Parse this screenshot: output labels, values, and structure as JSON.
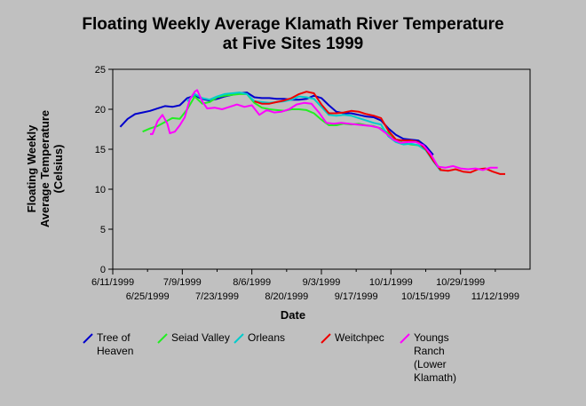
{
  "chart_data": {
    "type": "line",
    "title": [
      "Floating Weekly Average Klamath River Temperature",
      "at Five Sites 1999"
    ],
    "xlabel": "Date",
    "ylabel": [
      "Floating Weekly",
      "Average Temperature",
      "(Celsius)"
    ],
    "ylim": [
      0,
      25
    ],
    "yticks": [
      "0",
      "5",
      "10",
      "15",
      "20",
      "25"
    ],
    "xlim": [
      0,
      168
    ],
    "xticks_top": [
      {
        "x": 0,
        "label": "6/11/1999"
      },
      {
        "x": 28,
        "label": "7/9/1999"
      },
      {
        "x": 56,
        "label": "8/6/1999"
      },
      {
        "x": 84,
        "label": "9/3/1999"
      },
      {
        "x": 112,
        "label": "10/1/1999"
      },
      {
        "x": 140,
        "label": "10/29/1999"
      }
    ],
    "xticks_bottom": [
      {
        "x": 14,
        "label": "6/25/1999"
      },
      {
        "x": 42,
        "label": "7/23/1999"
      },
      {
        "x": 70,
        "label": "8/20/1999"
      },
      {
        "x": 98,
        "label": "9/17/1999"
      },
      {
        "x": 126,
        "label": "10/15/1999"
      },
      {
        "x": 154,
        "label": "11/12/1999"
      }
    ],
    "legend_placement": "bottom",
    "series": [
      {
        "name": "Tree of Heaven",
        "color": "#0000cc",
        "points": [
          [
            3,
            17.8
          ],
          [
            6,
            18.8
          ],
          [
            9,
            19.4
          ],
          [
            12,
            19.6
          ],
          [
            15,
            19.8
          ],
          [
            18,
            20.1
          ],
          [
            21,
            20.4
          ],
          [
            24,
            20.3
          ],
          [
            27,
            20.5
          ],
          [
            30,
            21.4
          ],
          [
            33,
            21.7
          ],
          [
            36,
            21.3
          ],
          [
            39,
            21.1
          ],
          [
            42,
            21.3
          ],
          [
            45,
            21.6
          ],
          [
            48,
            21.8
          ],
          [
            51,
            22.0
          ],
          [
            54,
            22.1
          ],
          [
            57,
            21.5
          ],
          [
            60,
            21.4
          ],
          [
            63,
            21.4
          ],
          [
            66,
            21.3
          ],
          [
            69,
            21.3
          ],
          [
            72,
            21.2
          ],
          [
            75,
            21.2
          ],
          [
            78,
            21.3
          ],
          [
            81,
            21.7
          ],
          [
            84,
            21.4
          ],
          [
            87,
            20.5
          ],
          [
            90,
            19.7
          ],
          [
            93,
            19.5
          ],
          [
            96,
            19.5
          ],
          [
            99,
            19.3
          ],
          [
            102,
            19.1
          ],
          [
            105,
            19.0
          ],
          [
            108,
            18.6
          ],
          [
            111,
            17.6
          ],
          [
            114,
            16.8
          ],
          [
            117,
            16.3
          ],
          [
            120,
            16.2
          ],
          [
            123,
            16.1
          ],
          [
            126,
            15.4
          ],
          [
            129,
            14.3
          ]
        ]
      },
      {
        "name": "Seiad Valley",
        "color": "#22ee22",
        "points": [
          [
            12,
            17.2
          ],
          [
            15,
            17.6
          ],
          [
            18,
            17.9
          ],
          [
            21,
            18.4
          ],
          [
            24,
            18.9
          ],
          [
            27,
            18.8
          ],
          [
            30,
            20.0
          ],
          [
            33,
            21.6
          ],
          [
            36,
            20.7
          ],
          [
            39,
            20.9
          ],
          [
            42,
            21.5
          ],
          [
            45,
            21.7
          ],
          [
            48,
            21.8
          ],
          [
            51,
            21.9
          ],
          [
            54,
            21.9
          ],
          [
            57,
            20.8
          ],
          [
            60,
            20.2
          ],
          [
            63,
            20.0
          ],
          [
            66,
            19.9
          ],
          [
            69,
            19.8
          ],
          [
            72,
            20.0
          ],
          [
            75,
            20.0
          ],
          [
            78,
            19.9
          ],
          [
            81,
            19.5
          ],
          [
            84,
            18.7
          ],
          [
            87,
            18.0
          ],
          [
            90,
            18.0
          ],
          [
            93,
            18.2
          ],
          [
            96,
            18.1
          ],
          [
            99,
            18.2
          ],
          [
            102,
            18.0
          ],
          [
            105,
            17.9
          ],
          [
            108,
            17.6
          ],
          [
            111,
            17.0
          ],
          [
            114,
            16.2
          ],
          [
            117,
            15.8
          ],
          [
            120,
            15.6
          ],
          [
            123,
            15.5
          ],
          [
            126,
            14.9
          ],
          [
            129,
            13.6
          ],
          [
            132,
            12.5
          ]
        ]
      },
      {
        "name": "Orleans",
        "color": "#00cccc",
        "points": [
          [
            30,
            21.0
          ],
          [
            33,
            21.9
          ],
          [
            36,
            21.4
          ],
          [
            39,
            21.2
          ],
          [
            42,
            21.6
          ],
          [
            45,
            21.9
          ],
          [
            48,
            22.0
          ],
          [
            51,
            22.1
          ],
          [
            54,
            21.9
          ],
          [
            57,
            21.0
          ],
          [
            60,
            20.9
          ],
          [
            63,
            20.8
          ],
          [
            66,
            20.9
          ],
          [
            69,
            21.0
          ],
          [
            72,
            21.2
          ],
          [
            75,
            21.6
          ],
          [
            78,
            21.5
          ],
          [
            81,
            21.3
          ],
          [
            84,
            20.3
          ],
          [
            87,
            19.3
          ],
          [
            90,
            19.2
          ],
          [
            93,
            19.3
          ],
          [
            96,
            19.2
          ],
          [
            99,
            18.9
          ],
          [
            102,
            18.6
          ],
          [
            105,
            18.3
          ],
          [
            108,
            18.1
          ],
          [
            111,
            16.6
          ],
          [
            114,
            15.9
          ],
          [
            117,
            15.6
          ],
          [
            120,
            15.7
          ],
          [
            123,
            15.5
          ],
          [
            126,
            14.9
          ],
          [
            129,
            13.5
          ],
          [
            132,
            12.3
          ]
        ]
      },
      {
        "name": "Weitchpec",
        "color": "#ee0000",
        "points": [
          [
            57,
            21.0
          ],
          [
            60,
            20.7
          ],
          [
            63,
            20.7
          ],
          [
            66,
            20.9
          ],
          [
            69,
            21.1
          ],
          [
            72,
            21.4
          ],
          [
            75,
            21.9
          ],
          [
            78,
            22.2
          ],
          [
            81,
            22.0
          ],
          [
            84,
            20.6
          ],
          [
            87,
            19.5
          ],
          [
            90,
            19.5
          ],
          [
            93,
            19.6
          ],
          [
            96,
            19.8
          ],
          [
            99,
            19.7
          ],
          [
            102,
            19.4
          ],
          [
            105,
            19.2
          ],
          [
            108,
            18.9
          ],
          [
            111,
            17.3
          ],
          [
            114,
            16.2
          ],
          [
            117,
            16.1
          ],
          [
            120,
            16.1
          ],
          [
            123,
            15.9
          ],
          [
            126,
            15.0
          ],
          [
            129,
            13.6
          ],
          [
            132,
            12.4
          ],
          [
            135,
            12.3
          ],
          [
            138,
            12.5
          ],
          [
            141,
            12.2
          ],
          [
            144,
            12.1
          ],
          [
            147,
            12.5
          ],
          [
            150,
            12.6
          ],
          [
            153,
            12.2
          ],
          [
            156,
            11.9
          ],
          [
            158,
            11.9
          ]
        ]
      },
      {
        "name": "Youngs Ranch (Lower Klamath)",
        "color": "#ff00ff",
        "points": [
          [
            15,
            16.9
          ],
          [
            16,
            16.9
          ],
          [
            18,
            18.5
          ],
          [
            20,
            19.3
          ],
          [
            22,
            18.2
          ],
          [
            23,
            17.0
          ],
          [
            25,
            17.2
          ],
          [
            27,
            18.0
          ],
          [
            29,
            19.0
          ],
          [
            31,
            21.2
          ],
          [
            33,
            22.2
          ],
          [
            34,
            22.4
          ],
          [
            36,
            21.0
          ],
          [
            38,
            20.1
          ],
          [
            41,
            20.2
          ],
          [
            44,
            20.0
          ],
          [
            47,
            20.3
          ],
          [
            50,
            20.6
          ],
          [
            53,
            20.3
          ],
          [
            56,
            20.5
          ],
          [
            59,
            19.3
          ],
          [
            62,
            19.9
          ],
          [
            65,
            19.6
          ],
          [
            68,
            19.7
          ],
          [
            71,
            20.0
          ],
          [
            74,
            20.6
          ],
          [
            77,
            20.8
          ],
          [
            80,
            20.7
          ],
          [
            83,
            19.6
          ],
          [
            86,
            18.3
          ],
          [
            89,
            18.2
          ],
          [
            92,
            18.3
          ],
          [
            95,
            18.2
          ],
          [
            98,
            18.1
          ],
          [
            101,
            18.0
          ],
          [
            104,
            17.9
          ],
          [
            107,
            17.7
          ],
          [
            110,
            17.0
          ],
          [
            113,
            16.2
          ],
          [
            116,
            15.8
          ],
          [
            119,
            15.9
          ],
          [
            122,
            15.9
          ],
          [
            125,
            15.5
          ],
          [
            128,
            14.4
          ],
          [
            131,
            12.8
          ],
          [
            134,
            12.7
          ],
          [
            137,
            12.9
          ],
          [
            140,
            12.6
          ],
          [
            143,
            12.5
          ],
          [
            146,
            12.6
          ],
          [
            149,
            12.4
          ],
          [
            152,
            12.7
          ],
          [
            155,
            12.7
          ]
        ]
      }
    ]
  }
}
